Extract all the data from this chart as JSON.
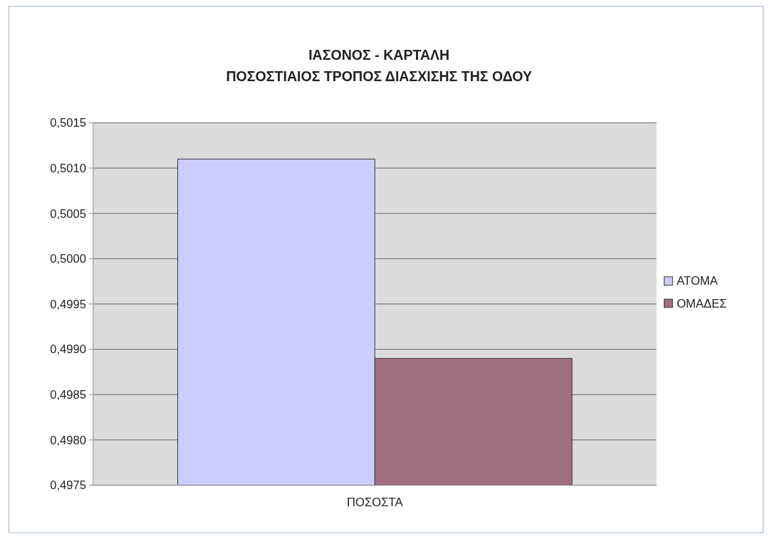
{
  "chart_data": {
    "type": "bar",
    "title": "ΙΑΣΟΝΟΣ - ΚΑΡΤΑΛΗ\nΠΟΣΟΣΤΙΑΙΟΣ ΤΡΟΠΟΣ ΔΙΑΣΧΙΣΗΣ ΤΗΣ ΟΔΟΥ",
    "categories": [
      "ΠΟΣΟΣΤΑ"
    ],
    "series": [
      {
        "name": "ΑΤΟΜΑ",
        "color": "#ccccff",
        "values": [
          0.5011
        ]
      },
      {
        "name": "ΟΜΑΔΕΣ",
        "color": "#a07080",
        "values": [
          0.4989
        ]
      }
    ],
    "ylim": [
      0.4975,
      0.5015
    ],
    "yticks": [
      {
        "value": 0.4975,
        "label": "0,4975"
      },
      {
        "value": 0.498,
        "label": "0,4980"
      },
      {
        "value": 0.4985,
        "label": "0,4985"
      },
      {
        "value": 0.499,
        "label": "0,4990"
      },
      {
        "value": 0.4995,
        "label": "0,4995"
      },
      {
        "value": 0.5,
        "label": "0,5000"
      },
      {
        "value": 0.5005,
        "label": "0,5005"
      },
      {
        "value": 0.501,
        "label": "0,5010"
      },
      {
        "value": 0.5015,
        "label": "0,5015"
      }
    ],
    "grid": "y",
    "legend": "right"
  }
}
